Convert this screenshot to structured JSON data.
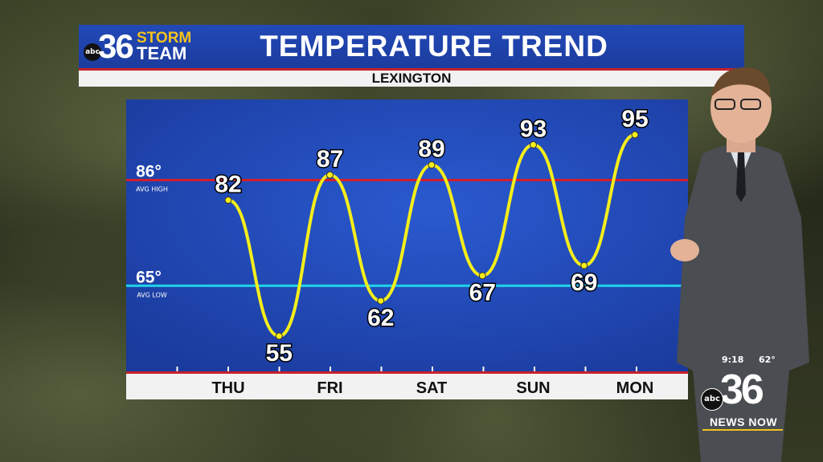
{
  "logo": {
    "abc": "abc",
    "number": "36",
    "storm": "STORM",
    "team": "TEAM"
  },
  "header": {
    "title": "TEMPERATURE TREND",
    "location": "LEXINGTON"
  },
  "colors": {
    "banner": "#1f44ab",
    "panel": "#1e45b0",
    "avg_high": "#d21f2e",
    "avg_low": "#1fd4e8",
    "trend": "#f5ee1a"
  },
  "chart_data": {
    "type": "line",
    "categories": [
      "THU",
      "FRI",
      "SAT",
      "SUN",
      "MON"
    ],
    "series": [
      {
        "values": [
          {
            "day": "THU",
            "period": "high",
            "temp": 82
          },
          {
            "day": "THU",
            "period": "low",
            "temp": 55
          },
          {
            "day": "FRI",
            "period": "high",
            "temp": 87
          },
          {
            "day": "FRI",
            "period": "low",
            "temp": 62
          },
          {
            "day": "SAT",
            "period": "high",
            "temp": 89
          },
          {
            "day": "SAT",
            "period": "low",
            "temp": 67
          },
          {
            "day": "SUN",
            "period": "high",
            "temp": 93
          },
          {
            "day": "SUN",
            "period": "low",
            "temp": 69
          },
          {
            "day": "MON",
            "period": "high",
            "temp": 95
          }
        ]
      }
    ],
    "reference_lines": [
      {
        "value": 86,
        "label": "86°",
        "sublabel": "AVG HIGH"
      },
      {
        "value": 65,
        "label": "65°",
        "sublabel": "AVG LOW"
      }
    ],
    "ylim": [
      48,
      102
    ],
    "grid": false
  },
  "bug": {
    "time": "9:18",
    "temp": "62°",
    "abc": "abc",
    "number": "36",
    "label": "NEWS NOW"
  }
}
